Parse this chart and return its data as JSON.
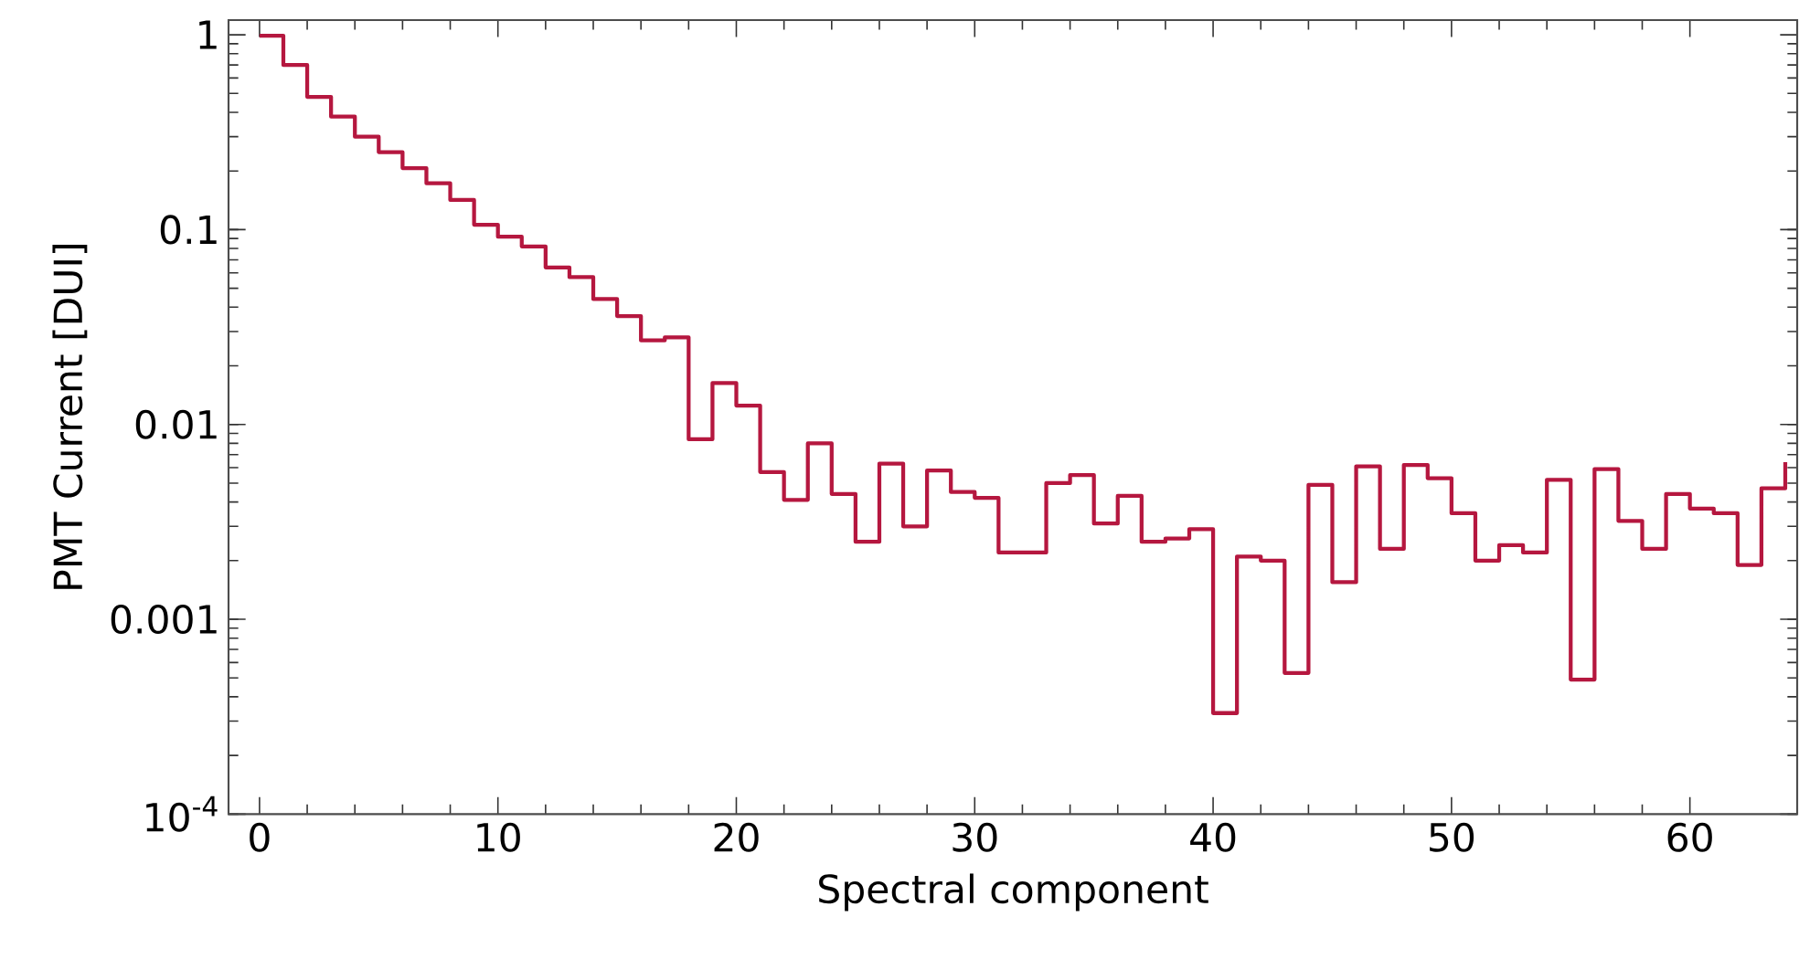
{
  "chart_data": {
    "type": "step",
    "xlabel": "Spectral component",
    "ylabel": "PMT Current [DUI]",
    "log": "y",
    "marker": "none",
    "line_style": "solid",
    "xlim": [
      -1.3,
      64.5
    ],
    "ylim": [
      0.0001,
      1.19
    ],
    "xticks": [
      0,
      10,
      20,
      30,
      40,
      50,
      60
    ],
    "yticks": [
      {
        "value": 0.0001,
        "label": "10$^{-4}$"
      },
      0.001,
      0.01,
      0.1,
      1
    ],
    "x": [
      0,
      1,
      2,
      3,
      4,
      5,
      6,
      7,
      8,
      9,
      10,
      11,
      12,
      13,
      14,
      15,
      16,
      17,
      18,
      19,
      20,
      21,
      22,
      23,
      24,
      25,
      26,
      27,
      28,
      29,
      30,
      31,
      32,
      33,
      34,
      35,
      36,
      37,
      38,
      39,
      40,
      41,
      42,
      43,
      44,
      45,
      46,
      47,
      48,
      49,
      50,
      51,
      52,
      53,
      54,
      55,
      56,
      57,
      58,
      59,
      60,
      61,
      62,
      63,
      64
    ],
    "series": [
      {
        "color": "#b5173f",
        "values": [
          0.99,
          0.7,
          0.48,
          0.38,
          0.3,
          0.25,
          0.207,
          0.173,
          0.142,
          0.106,
          0.092,
          0.082,
          0.064,
          0.057,
          0.044,
          0.036,
          0.027,
          0.028,
          0.0084,
          0.0163,
          0.0125,
          0.0057,
          0.0041,
          0.008,
          0.0044,
          0.0025,
          0.0063,
          0.003,
          0.0058,
          0.0045,
          0.0042,
          0.0022,
          0.0022,
          0.005,
          0.0055,
          0.0031,
          0.0043,
          0.0025,
          0.0026,
          0.0029,
          0.00033,
          0.0021,
          0.002,
          0.00053,
          0.0049,
          0.00155,
          0.0061,
          0.0023,
          0.0062,
          0.0053,
          0.0035,
          0.002,
          0.0024,
          0.0022,
          0.0052,
          0.00049,
          0.0059,
          0.0032,
          0.0023,
          0.0044,
          0.0037,
          0.0035,
          0.0019,
          0.0047,
          0.0064
        ]
      }
    ]
  }
}
